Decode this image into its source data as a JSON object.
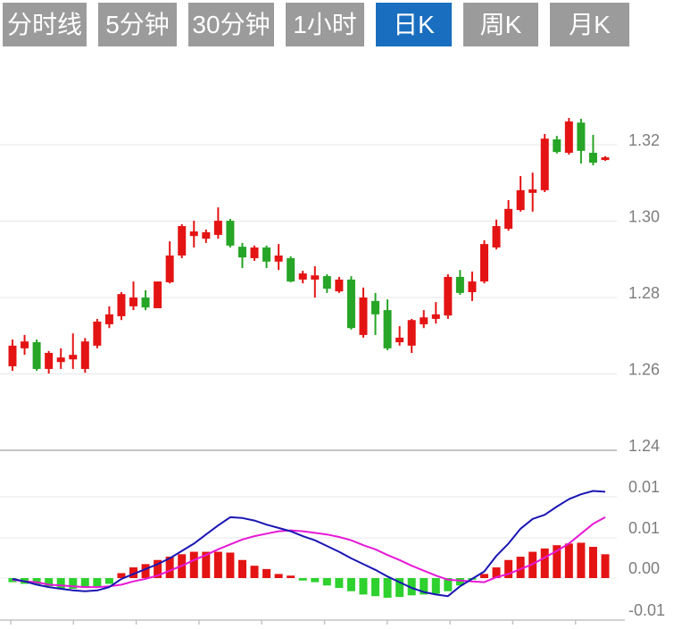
{
  "toolbar": {
    "tabs": [
      {
        "label": "分时线",
        "selected": false
      },
      {
        "label": "5分钟",
        "selected": false
      },
      {
        "label": "30分钟",
        "selected": false
      },
      {
        "label": "1小时",
        "selected": false
      },
      {
        "label": "日K",
        "selected": true
      },
      {
        "label": "周K",
        "selected": false
      },
      {
        "label": "月K",
        "selected": false
      }
    ],
    "tab_color": "#9b9b9b",
    "selected_color": "#1a6ebf"
  },
  "chart_data": {
    "type": "candlestick-with-macd",
    "price_panel": {
      "axis_labels": [
        "1.32",
        "1.30",
        "1.28",
        "1.26",
        "1.24"
      ],
      "axis_values": [
        1.32,
        1.3,
        1.28,
        1.26,
        1.24
      ],
      "ylim": [
        1.235,
        1.335
      ],
      "grid": true,
      "legend": "none",
      "candles_ohlc": [
        [
          1.262,
          1.269,
          1.2608,
          1.2674
        ],
        [
          1.2667,
          1.2702,
          1.265,
          1.2685
        ],
        [
          1.2683,
          1.269,
          1.2608,
          1.2613
        ],
        [
          1.2613,
          1.266,
          1.2601,
          1.2655
        ],
        [
          1.2631,
          1.2667,
          1.2613,
          1.2643
        ],
        [
          1.2638,
          1.2706,
          1.2613,
          1.265
        ],
        [
          1.2613,
          1.2694,
          1.2603,
          1.2685
        ],
        [
          1.2674,
          1.2744,
          1.2667,
          1.2737
        ],
        [
          1.273,
          1.2777,
          1.272,
          1.2756
        ],
        [
          1.2751,
          1.2814,
          1.2741,
          1.2809
        ],
        [
          1.2777,
          1.2842,
          1.2767,
          1.28
        ],
        [
          1.28,
          1.2819,
          1.2767,
          1.2774
        ],
        [
          1.2772,
          1.2842,
          1.2772,
          1.2842
        ],
        [
          1.284,
          1.2947,
          1.2837,
          1.291
        ],
        [
          1.291,
          1.2992,
          1.2903,
          1.2987
        ],
        [
          1.2961,
          1.3001,
          1.2931,
          1.2973
        ],
        [
          1.2954,
          1.2978,
          1.2943,
          1.2971
        ],
        [
          1.2964,
          1.3036,
          1.2954,
          1.3001
        ],
        [
          1.3001,
          1.3006,
          1.2931,
          1.2936
        ],
        [
          1.2933,
          1.2943,
          1.2877,
          1.2905
        ],
        [
          1.2903,
          1.2936,
          1.2896,
          1.2931
        ],
        [
          1.2931,
          1.2936,
          1.2877,
          1.2894
        ],
        [
          1.2894,
          1.294,
          1.2872,
          1.291
        ],
        [
          1.2903,
          1.2908,
          1.284,
          1.2842
        ],
        [
          1.2847,
          1.287,
          1.2837,
          1.2863
        ],
        [
          1.2847,
          1.2882,
          1.28,
          1.2858
        ],
        [
          1.2856,
          1.2861,
          1.2812,
          1.2823
        ],
        [
          1.2816,
          1.2854,
          1.2812,
          1.2847
        ],
        [
          1.2847,
          1.2856,
          1.2716,
          1.272
        ],
        [
          1.2702,
          1.2826,
          1.2695,
          1.28
        ],
        [
          1.2791,
          1.2812,
          1.2702,
          1.2756
        ],
        [
          1.2767,
          1.2795,
          1.2662,
          1.2667
        ],
        [
          1.2683,
          1.2725,
          1.2674,
          1.2695
        ],
        [
          1.2674,
          1.2744,
          1.2655,
          1.2741
        ],
        [
          1.273,
          1.2767,
          1.272,
          1.2748
        ],
        [
          1.2744,
          1.2788,
          1.2732,
          1.2756
        ],
        [
          1.2753,
          1.2861,
          1.2744,
          1.2854
        ],
        [
          1.2854,
          1.2872,
          1.2807,
          1.2812
        ],
        [
          1.2814,
          1.2868,
          1.2791,
          1.2842
        ],
        [
          1.2842,
          1.295,
          1.2837,
          1.294
        ],
        [
          1.2931,
          1.3004,
          1.2926,
          1.2987
        ],
        [
          1.298,
          1.3055,
          1.2975,
          1.3032
        ],
        [
          1.3029,
          1.3118,
          1.3025,
          1.3081
        ],
        [
          1.3074,
          1.3127,
          1.3025,
          1.3083
        ],
        [
          1.3081,
          1.3228,
          1.3076,
          1.3216
        ],
        [
          1.3214,
          1.3223,
          1.3177,
          1.3181
        ],
        [
          1.3179,
          1.327,
          1.3174,
          1.3261
        ],
        [
          1.3258,
          1.3268,
          1.3151,
          1.3184
        ],
        [
          1.3179,
          1.3226,
          1.3146,
          1.3153
        ],
        [
          1.316,
          1.317,
          1.3158,
          1.3167
        ]
      ]
    },
    "macd_panel": {
      "axis_labels": [
        "0.01",
        "0.01",
        "0.00",
        "-0.01"
      ],
      "axis_values": [
        0.01,
        0.005,
        0.0,
        -0.005
      ],
      "ylim": [
        -0.006,
        0.0115
      ],
      "histogram": [
        -0.0005,
        -0.0007,
        -0.0008,
        -0.001,
        -0.0013,
        -0.0013,
        -0.0011,
        -0.001,
        -0.0007,
        0.0006,
        0.0013,
        0.0017,
        0.0022,
        0.0026,
        0.0029,
        0.0032,
        0.0032,
        0.0032,
        0.0031,
        0.0022,
        0.0015,
        0.0011,
        0.0005,
        0.0003,
        -0.0003,
        -0.0005,
        -0.0009,
        -0.0012,
        -0.0016,
        -0.002,
        -0.0022,
        -0.0024,
        -0.0023,
        -0.0021,
        -0.002,
        -0.0019,
        -0.0016,
        -0.0009,
        -0.0002,
        0.0005,
        0.0013,
        0.0022,
        0.0026,
        0.0032,
        0.0036,
        0.004,
        0.0042,
        0.0043,
        0.0038,
        0.0029
      ],
      "dif_line": [
        -0.0001,
        -0.0004,
        -0.0008,
        -0.0011,
        -0.0013,
        -0.0015,
        -0.0016,
        -0.0015,
        -0.0011,
        -0.0001,
        0.0005,
        0.0011,
        0.0017,
        0.0024,
        0.0033,
        0.0042,
        0.0053,
        0.0064,
        0.0074,
        0.0073,
        0.007,
        0.0065,
        0.0061,
        0.0057,
        0.0051,
        0.0046,
        0.0039,
        0.0032,
        0.0024,
        0.0017,
        0.001,
        0.0002,
        -0.0005,
        -0.0012,
        -0.0017,
        -0.002,
        -0.0022,
        -0.001,
        -0.0001,
        0.0008,
        0.0027,
        0.0042,
        0.006,
        0.0072,
        0.0077,
        0.0087,
        0.0096,
        0.0102,
        0.0106,
        0.0105
      ],
      "dea_line": [
        -0.0002,
        -0.0004,
        -0.0005,
        -0.0008,
        -0.0009,
        -0.001,
        -0.0011,
        -0.0011,
        -0.001,
        -0.0008,
        -0.0004,
        -0.0001,
        0.0003,
        0.0009,
        0.0015,
        0.0022,
        0.0028,
        0.0035,
        0.0041,
        0.0047,
        0.0051,
        0.0054,
        0.0057,
        0.0058,
        0.0057,
        0.0055,
        0.0053,
        0.005,
        0.0046,
        0.004,
        0.0035,
        0.0028,
        0.0022,
        0.0015,
        0.0009,
        0.0003,
        -0.0002,
        -0.0003,
        -0.0004,
        -0.0005,
        0.0001,
        0.0005,
        0.0011,
        0.0017,
        0.0025,
        0.0033,
        0.0042,
        0.0054,
        0.0066,
        0.0074
      ]
    },
    "colors": {
      "up": "#e41414",
      "down": "#26a526",
      "hist_up": "#e41414",
      "hist_down": "#2ed12e",
      "dif": "#1a16b4",
      "dea": "#e619d6",
      "grid": "#e7e7e7",
      "grid_dark": "#c4c4c4",
      "axis_text": "#7d7d7d"
    }
  }
}
